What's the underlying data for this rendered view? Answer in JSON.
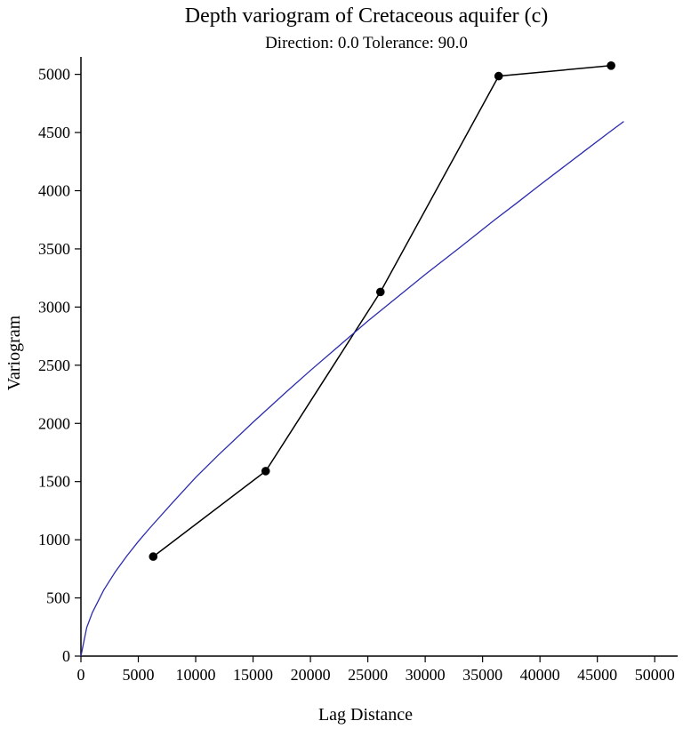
{
  "chart_data": {
    "type": "scatter",
    "title": "Depth variogram of Cretaceous aquifer (c)",
    "subtitle": "Direction: 0.0 Tolerance: 90.0",
    "xlabel": "Lag Distance",
    "ylabel": "Variogram",
    "xlim": [
      0,
      52000
    ],
    "ylim": [
      0,
      5150
    ],
    "x_ticks": [
      0,
      5000,
      10000,
      15000,
      20000,
      25000,
      30000,
      35000,
      40000,
      45000,
      50000
    ],
    "y_ticks": [
      0,
      500,
      1000,
      1500,
      2000,
      2500,
      3000,
      3500,
      4000,
      4500,
      5000
    ],
    "grid": false,
    "series": [
      {
        "kind": "experimental",
        "style": "points-connected",
        "color": "#000000",
        "x": [
          6300,
          16100,
          26100,
          36400,
          46200
        ],
        "y": [
          855,
          1590,
          3130,
          4985,
          5075
        ]
      },
      {
        "kind": "model",
        "style": "line",
        "color": "#2b2bb0",
        "x": [
          0,
          500,
          1000,
          2000,
          3000,
          4000,
          5000,
          6000,
          8000,
          10000,
          12000,
          15000,
          18000,
          20000,
          22000,
          25000,
          28000,
          30000,
          33000,
          36000,
          38000,
          40000,
          42000,
          44000,
          46000,
          47300
        ],
        "y": [
          0,
          245,
          375,
          570,
          725,
          860,
          985,
          1100,
          1320,
          1535,
          1730,
          2010,
          2280,
          2455,
          2625,
          2880,
          3120,
          3280,
          3510,
          3745,
          3895,
          4050,
          4200,
          4350,
          4500,
          4595
        ]
      }
    ]
  }
}
